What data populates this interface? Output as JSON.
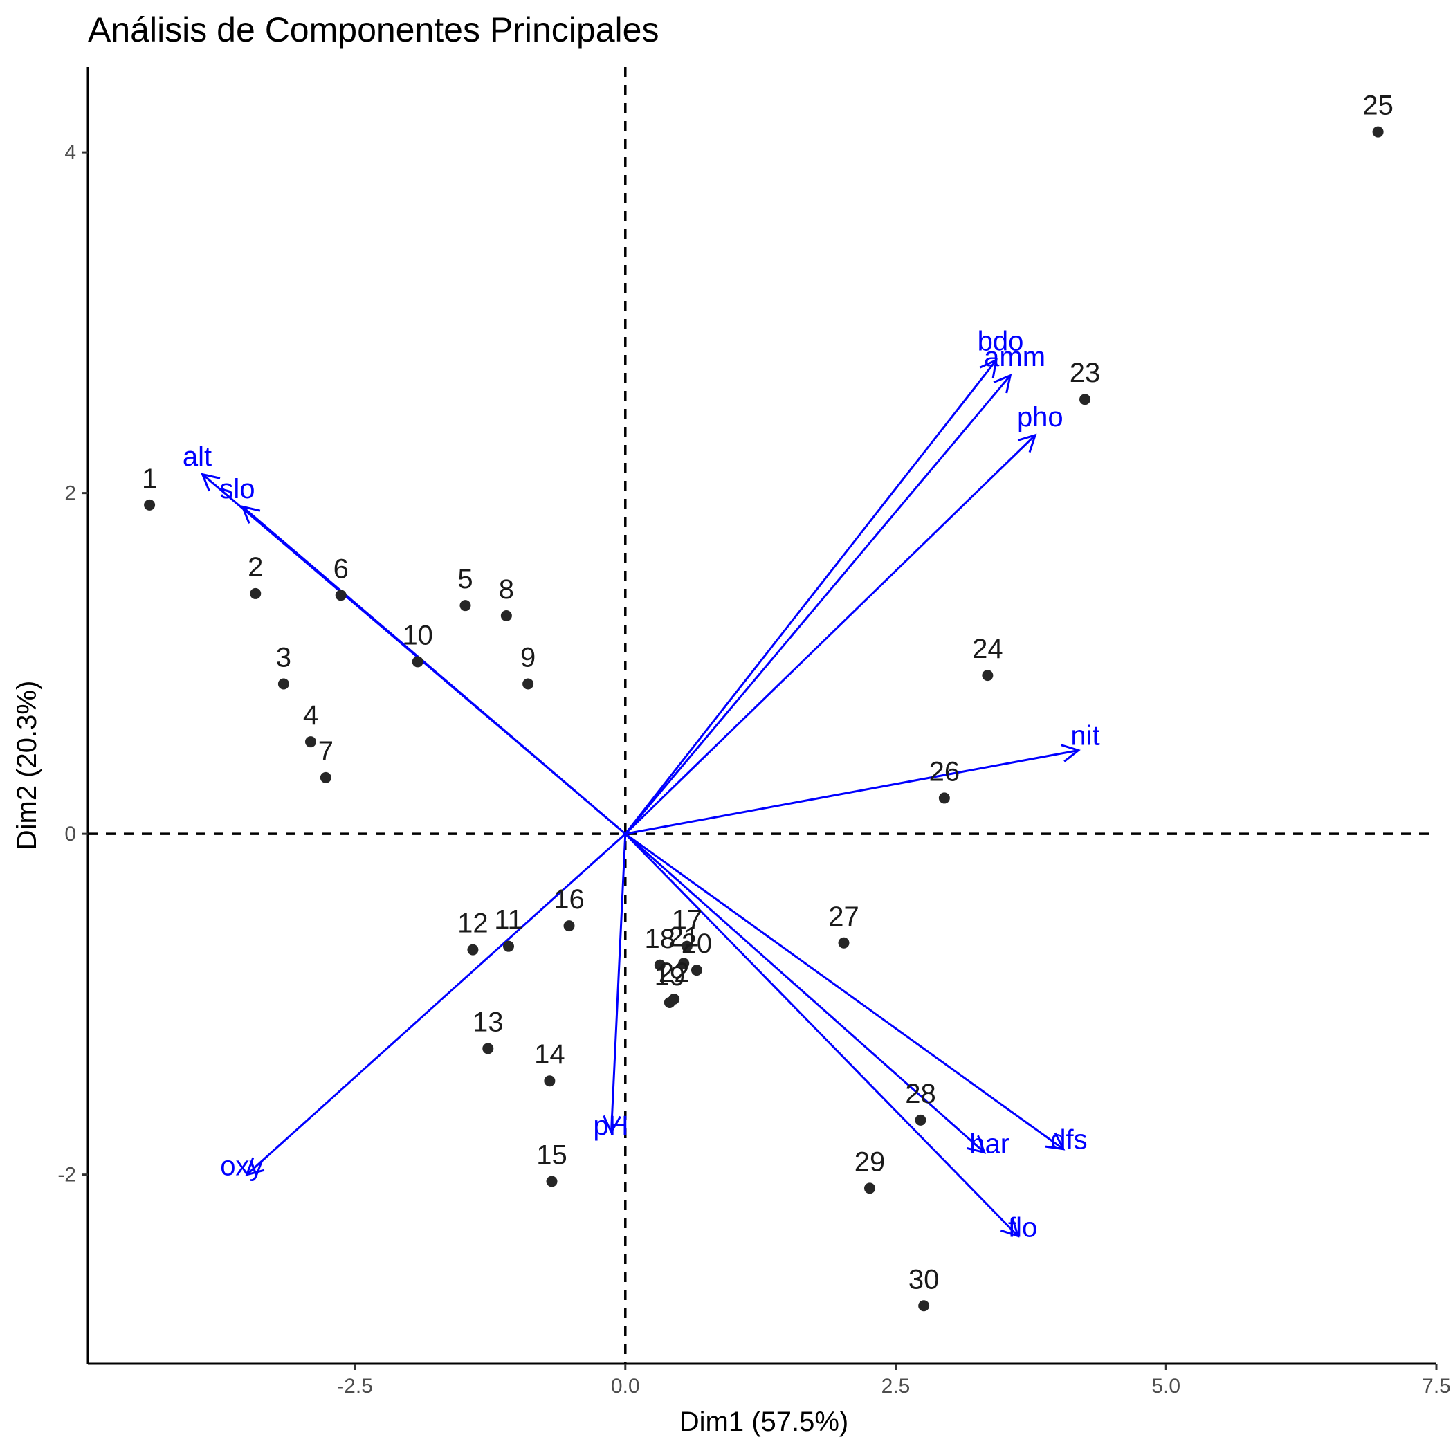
{
  "chart_data": {
    "type": "scatter",
    "title": "Análisis de Componentes Principales",
    "xlabel": "Dim1 (57.5%)",
    "ylabel": "Dim2 (20.3%)",
    "xlim": [
      -4.97,
      7.5
    ],
    "ylim": [
      -3.11,
      4.5
    ],
    "x_ticks": [
      -2.5,
      0.0,
      2.5,
      5.0,
      7.5
    ],
    "x_tick_labels": [
      "-2.5",
      "0.0",
      "2.5",
      "5.0",
      "7.5"
    ],
    "y_ticks": [
      -2,
      0,
      2,
      4
    ],
    "y_tick_labels": [
      "-2",
      "0",
      "2",
      "4"
    ],
    "grid": false,
    "reference_lines": {
      "x": 0,
      "y": 0,
      "style": "dashed"
    },
    "point_color": "#262626",
    "arrow_color": "#0000ff",
    "individuals": [
      {
        "label": "1",
        "x": -4.4,
        "y": 1.93
      },
      {
        "label": "2",
        "x": -3.42,
        "y": 1.41
      },
      {
        "label": "3",
        "x": -3.16,
        "y": 0.88
      },
      {
        "label": "4",
        "x": -2.91,
        "y": 0.54
      },
      {
        "label": "5",
        "x": -1.48,
        "y": 1.34
      },
      {
        "label": "6",
        "x": -2.63,
        "y": 1.4
      },
      {
        "label": "7",
        "x": -2.77,
        "y": 0.33
      },
      {
        "label": "8",
        "x": -1.1,
        "y": 1.28
      },
      {
        "label": "9",
        "x": -0.9,
        "y": 0.88
      },
      {
        "label": "10",
        "x": -1.92,
        "y": 1.01
      },
      {
        "label": "11",
        "x": -1.08,
        "y": -0.66
      },
      {
        "label": "12",
        "x": -1.41,
        "y": -0.68
      },
      {
        "label": "13",
        "x": -1.27,
        "y": -1.26
      },
      {
        "label": "14",
        "x": -0.7,
        "y": -1.45
      },
      {
        "label": "15",
        "x": -0.68,
        "y": -2.04
      },
      {
        "label": "16",
        "x": -0.52,
        "y": -0.54
      },
      {
        "label": "17",
        "x": 0.57,
        "y": -0.66
      },
      {
        "label": "18",
        "x": 0.32,
        "y": -0.77
      },
      {
        "label": "19",
        "x": 0.41,
        "y": -0.99
      },
      {
        "label": "20",
        "x": 0.66,
        "y": -0.8
      },
      {
        "label": "21",
        "x": 0.54,
        "y": -0.76
      },
      {
        "label": "22",
        "x": 0.45,
        "y": -0.97
      },
      {
        "label": "23",
        "x": 4.25,
        "y": 2.55
      },
      {
        "label": "24",
        "x": 3.35,
        "y": 0.93
      },
      {
        "label": "25",
        "x": 6.96,
        "y": 4.12
      },
      {
        "label": "26",
        "x": 2.95,
        "y": 0.21
      },
      {
        "label": "27",
        "x": 2.02,
        "y": -0.64
      },
      {
        "label": "28",
        "x": 2.73,
        "y": -1.68
      },
      {
        "label": "29",
        "x": 2.26,
        "y": -2.08
      },
      {
        "label": "30",
        "x": 2.76,
        "y": -2.77
      }
    ],
    "variables": [
      {
        "label": "alt",
        "x": -3.91,
        "y": 2.11
      },
      {
        "label": "slo",
        "x": -3.54,
        "y": 1.92
      },
      {
        "label": "bdo",
        "x": 3.43,
        "y": 2.78
      },
      {
        "label": "amm",
        "x": 3.56,
        "y": 2.69
      },
      {
        "label": "pho",
        "x": 3.79,
        "y": 2.34
      },
      {
        "label": "nit",
        "x": 4.19,
        "y": 0.49
      },
      {
        "label": "dfs",
        "x": 4.05,
        "y": -1.85
      },
      {
        "label": "har",
        "x": 3.32,
        "y": -1.87
      },
      {
        "label": "flo",
        "x": 3.63,
        "y": -2.36
      },
      {
        "label": "pH",
        "x": -0.13,
        "y": -1.75
      },
      {
        "label": "oxy",
        "x": -3.5,
        "y": -2.0
      }
    ]
  }
}
